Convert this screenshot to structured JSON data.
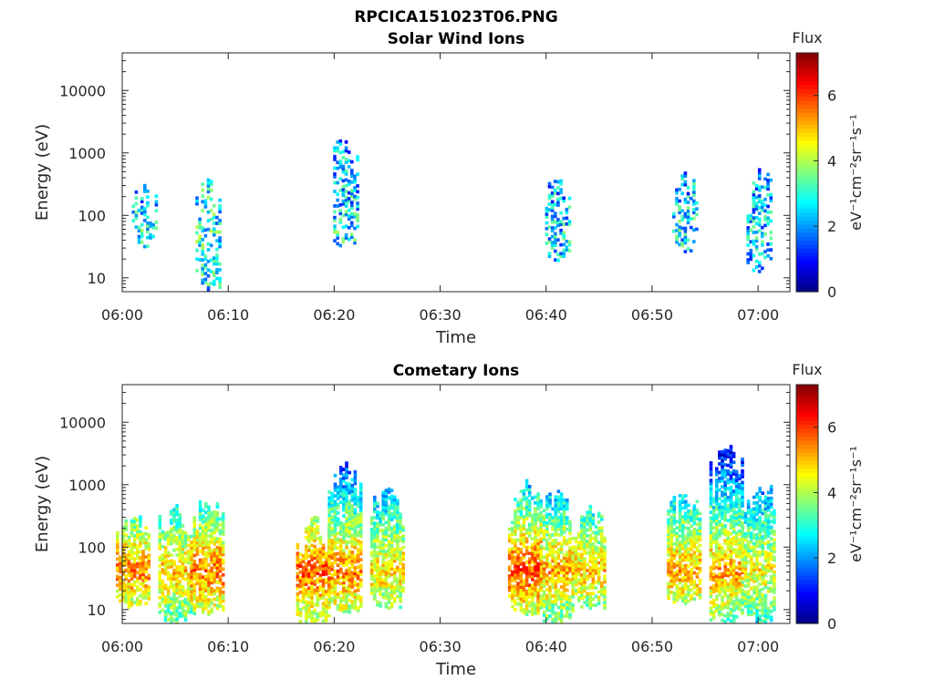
{
  "figure_title": "RPCICA151023T06.PNG",
  "chart_data": [
    {
      "type": "heatmap",
      "title": "Solar Wind Ions",
      "xlabel": "Time",
      "ylabel": "Energy (eV)",
      "xlim": [
        "06:00",
        "07:03"
      ],
      "x_ticks": [
        "06:00",
        "06:10",
        "06:20",
        "06:30",
        "06:40",
        "06:50",
        "07:00"
      ],
      "ylim": [
        6,
        40000
      ],
      "yscale": "log",
      "y_ticks": [
        "10",
        "100",
        "1000",
        "10000"
      ],
      "colorbar": {
        "label": "Flux",
        "units": "eV⁻¹cm⁻²sr⁻¹s⁻¹",
        "range": [
          0,
          7.3
        ],
        "ticks": [
          "0",
          "2",
          "4",
          "6"
        ]
      },
      "colormap": [
        "#00007f",
        "#0000ff",
        "#0080ff",
        "#00ffff",
        "#80ff80",
        "#ffff00",
        "#ff8000",
        "#ff0000",
        "#7f0000"
      ],
      "bursts": [
        {
          "time": "06:02",
          "emin": 30,
          "emax": 300,
          "flux": 2.6
        },
        {
          "time": "06:08",
          "emin": 6,
          "emax": 380,
          "flux": 2.9
        },
        {
          "time": "06:21",
          "emin": 30,
          "emax": 1700,
          "flux": 2.7
        },
        {
          "time": "06:41",
          "emin": 18,
          "emax": 380,
          "flux": 2.5
        },
        {
          "time": "06:53",
          "emin": 25,
          "emax": 560,
          "flux": 2.6
        },
        {
          "time": "07:00",
          "emin": 12,
          "emax": 560,
          "flux": 2.4
        }
      ]
    },
    {
      "type": "heatmap",
      "title": "Cometary Ions",
      "xlabel": "Time",
      "ylabel": "Energy (eV)",
      "xlim": [
        "06:00",
        "07:03"
      ],
      "x_ticks": [
        "06:00",
        "06:10",
        "06:20",
        "06:30",
        "06:40",
        "06:50",
        "07:00"
      ],
      "ylim": [
        6,
        40000
      ],
      "yscale": "log",
      "y_ticks": [
        "10",
        "100",
        "1000",
        "10000"
      ],
      "colorbar": {
        "label": "Flux",
        "units": "eV⁻¹cm⁻²sr⁻¹s⁻¹",
        "range": [
          0,
          7.3
        ],
        "ticks": [
          "0",
          "2",
          "4",
          "6"
        ]
      },
      "colormap": [
        "#00007f",
        "#0000ff",
        "#0080ff",
        "#00ffff",
        "#80ff80",
        "#ffff00",
        "#ff8000",
        "#ff0000",
        "#7f0000"
      ],
      "bursts": [
        {
          "time": "06:01",
          "emin": 10,
          "emax": 300,
          "flux": 5.4
        },
        {
          "time": "06:05",
          "emin": 6,
          "emax": 450,
          "flux": 5.0
        },
        {
          "time": "06:08",
          "emin": 8,
          "emax": 520,
          "flux": 5.6
        },
        {
          "time": "06:18",
          "emin": 6,
          "emax": 300,
          "flux": 5.8
        },
        {
          "time": "06:21",
          "emin": 8,
          "emax": 2200,
          "flux": 5.5
        },
        {
          "time": "06:25",
          "emin": 10,
          "emax": 900,
          "flux": 4.9
        },
        {
          "time": "06:38",
          "emin": 8,
          "emax": 1200,
          "flux": 5.9
        },
        {
          "time": "06:41",
          "emin": 6,
          "emax": 800,
          "flux": 5.2
        },
        {
          "time": "06:44",
          "emin": 10,
          "emax": 450,
          "flux": 5.0
        },
        {
          "time": "06:53",
          "emin": 12,
          "emax": 700,
          "flux": 5.2
        },
        {
          "time": "06:57",
          "emin": 6,
          "emax": 4200,
          "flux": 5.3
        },
        {
          "time": "07:00",
          "emin": 6,
          "emax": 900,
          "flux": 4.6
        }
      ]
    }
  ]
}
